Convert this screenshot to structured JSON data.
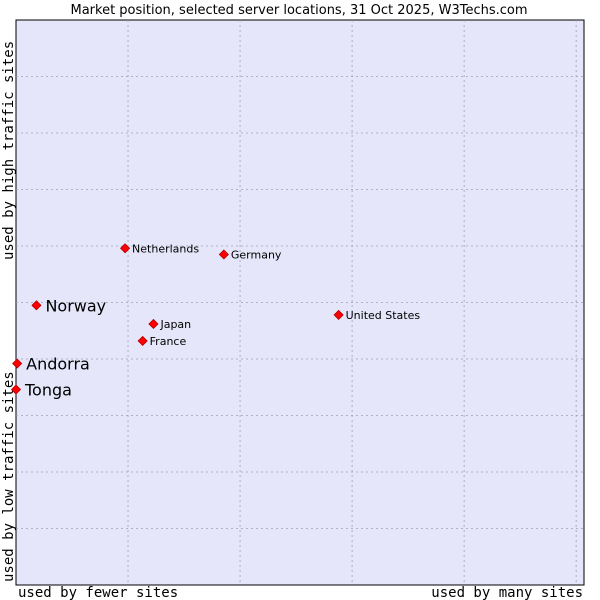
{
  "chart_data": {
    "type": "scatter",
    "title": "Market position, selected server locations, 31 Oct 2025, W3Techs.com",
    "xlabel_left": "used by fewer sites",
    "xlabel_right": "used by many sites",
    "ylabel_bottom": "used by low traffic sites",
    "ylabel_top": "used by high traffic sites",
    "xlim": [
      0,
      100
    ],
    "ylim": [
      0,
      100
    ],
    "grid": true,
    "colors": {
      "plot_background": "#e6e6fa",
      "grid": "#a0a0b4",
      "marker": "#ff0000",
      "marker_border": "#b00000"
    },
    "points": [
      {
        "name": "Netherlands",
        "x": 19.2,
        "y": 59.6,
        "emphasis": false
      },
      {
        "name": "Germany",
        "x": 36.6,
        "y": 58.5,
        "emphasis": false
      },
      {
        "name": "Norway",
        "x": 3.6,
        "y": 49.5,
        "emphasis": true
      },
      {
        "name": "United States",
        "x": 56.8,
        "y": 47.8,
        "emphasis": false
      },
      {
        "name": "Japan",
        "x": 24.2,
        "y": 46.2,
        "emphasis": false
      },
      {
        "name": "France",
        "x": 22.3,
        "y": 43.2,
        "emphasis": false
      },
      {
        "name": "Andorra",
        "x": 0.2,
        "y": 39.2,
        "emphasis": true
      },
      {
        "name": "Tonga",
        "x": 0.0,
        "y": 34.6,
        "emphasis": true
      }
    ]
  }
}
